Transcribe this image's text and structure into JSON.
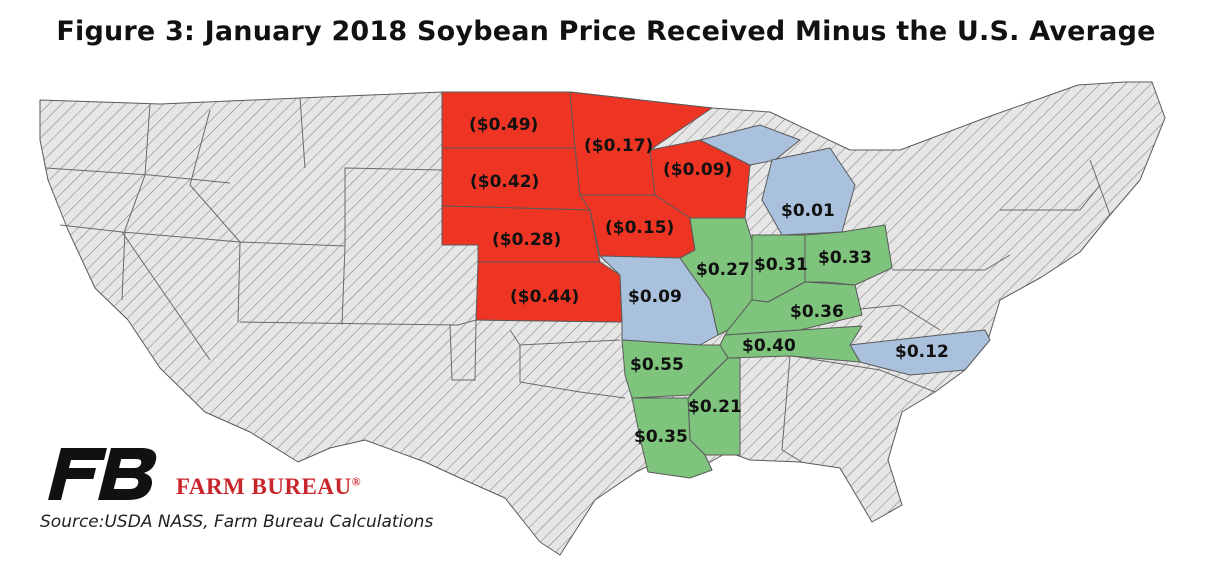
{
  "title": "Figure 3: January 2018 Soybean Price Received Minus the U.S. Average",
  "brand": {
    "name": "FARM BUREAU",
    "mark": "®",
    "logo_text": "FB"
  },
  "source": "Source:USDA NASS, Farm Bureau Calculations",
  "colors": {
    "negative": "#ee3524",
    "small_positive": "#a9c1dd",
    "positive": "#7ec47d",
    "no_data": "#e6e6e6",
    "brand_red": "#c8262c"
  },
  "states": [
    {
      "state": "ND",
      "label": "($0.49)",
      "category": "negative"
    },
    {
      "state": "MN",
      "label": "($0.17)",
      "category": "negative"
    },
    {
      "state": "WI",
      "label": "($0.09)",
      "category": "negative"
    },
    {
      "state": "SD",
      "label": "($0.42)",
      "category": "negative"
    },
    {
      "state": "NE",
      "label": "($0.28)",
      "category": "negative"
    },
    {
      "state": "IA",
      "label": "($0.15)",
      "category": "negative"
    },
    {
      "state": "KS",
      "label": "($0.44)",
      "category": "negative"
    },
    {
      "state": "MI",
      "label": "$0.01",
      "category": "small_positive"
    },
    {
      "state": "MO",
      "label": "$0.09",
      "category": "small_positive"
    },
    {
      "state": "NC",
      "label": "$0.12",
      "category": "small_positive"
    },
    {
      "state": "IL",
      "label": "$0.27",
      "category": "positive"
    },
    {
      "state": "IN",
      "label": "$0.31",
      "category": "positive"
    },
    {
      "state": "OH",
      "label": "$0.33",
      "category": "positive"
    },
    {
      "state": "KY",
      "label": "$0.36",
      "category": "positive"
    },
    {
      "state": "TN",
      "label": "$0.40",
      "category": "positive"
    },
    {
      "state": "AR",
      "label": "$0.55",
      "category": "positive"
    },
    {
      "state": "MS",
      "label": "$0.21",
      "category": "positive"
    },
    {
      "state": "LA",
      "label": "$0.35",
      "category": "positive"
    }
  ]
}
